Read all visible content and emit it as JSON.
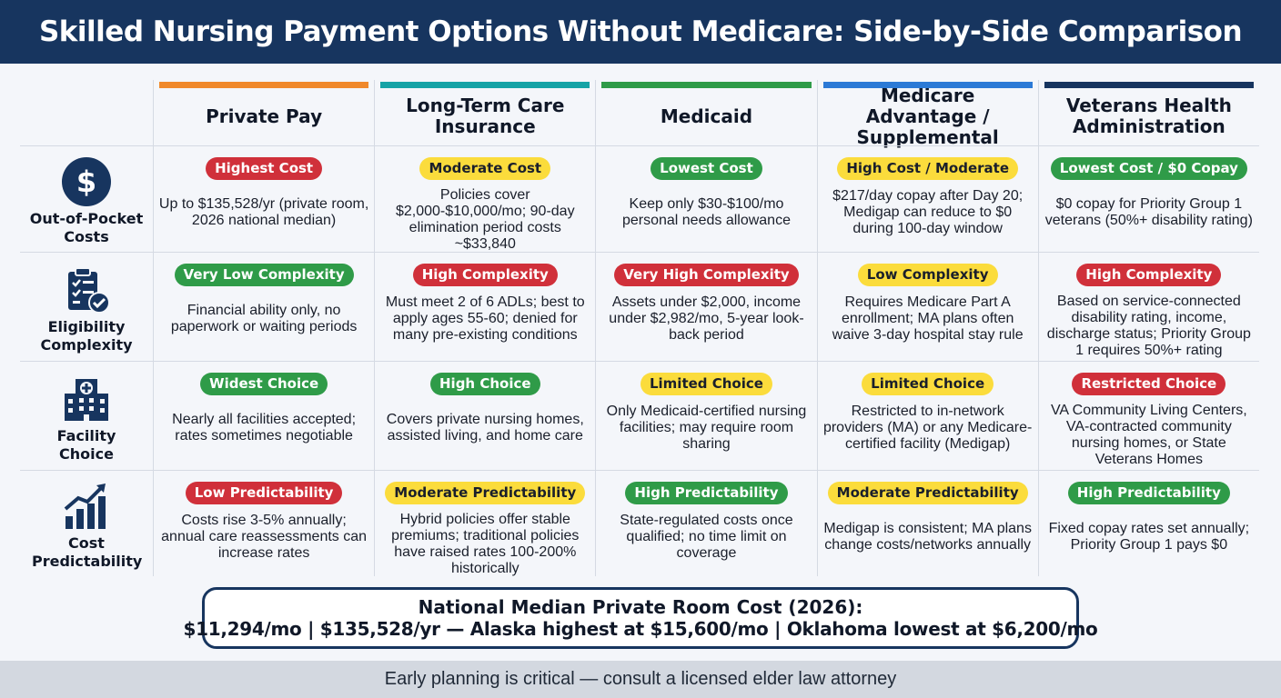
{
  "title": "Skilled Nursing Payment Options Without Medicare: Side-by-Side Comparison",
  "columns": [
    {
      "label": "Private Pay",
      "color": "#f0892b"
    },
    {
      "label": "Long-Term Care Insurance",
      "color": "#16a3a6"
    },
    {
      "label": "Medicaid",
      "color": "#2f9b48"
    },
    {
      "label": "Medicare Advantage / Supplemental",
      "color": "#2c7ad6"
    },
    {
      "label": "Veterans Health Administration",
      "color": "#17355f"
    }
  ],
  "rows": [
    {
      "label": "Out-of-Pocket Costs",
      "icon": "dollar-icon",
      "cells": [
        {
          "badge": "Highest Cost",
          "tone": "red",
          "text": "Up to $135,528/yr (private room, 2026 national median)"
        },
        {
          "badge": "Moderate Cost",
          "tone": "yellow",
          "text": "Policies cover $2,000-$10,000/mo; 90-day elimination period costs ~$33,840"
        },
        {
          "badge": "Lowest Cost",
          "tone": "green",
          "text": "Keep only $30-$100/mo personal needs allowance"
        },
        {
          "badge": "High Cost / Moderate",
          "tone": "yellow",
          "text": "$217/day copay after Day 20; Medigap can reduce to $0 during 100-day window"
        },
        {
          "badge": "Lowest Cost / $0 Copay",
          "tone": "green",
          "text": "$0 copay for Priority Group 1 veterans (50%+ disability rating)"
        }
      ]
    },
    {
      "label": "Eligibility Complexity",
      "icon": "clipboard-check-icon",
      "cells": [
        {
          "badge": "Very Low Complexity",
          "tone": "green",
          "text": "Financial ability only, no paperwork or waiting periods"
        },
        {
          "badge": "High Complexity",
          "tone": "red",
          "text": "Must meet 2 of 6 ADLs; best to apply ages 55-60; denied for many pre-existing conditions"
        },
        {
          "badge": "Very High Complexity",
          "tone": "red",
          "text": "Assets under $2,000, income under $2,982/mo, 5-year look-back period"
        },
        {
          "badge": "Low Complexity",
          "tone": "yellow",
          "text": "Requires Medicare Part A enrollment; MA plans often waive 3-day hospital stay rule"
        },
        {
          "badge": "High Complexity",
          "tone": "red",
          "text": "Based on service-connected disability rating, income, discharge status; Priority Group 1 requires 50%+ rating"
        }
      ]
    },
    {
      "label": "Facility Choice",
      "icon": "hospital-building-icon",
      "cells": [
        {
          "badge": "Widest Choice",
          "tone": "green",
          "text": "Nearly all facilities accepted; rates sometimes negotiable"
        },
        {
          "badge": "High Choice",
          "tone": "green",
          "text": "Covers private nursing homes, assisted living, and home care"
        },
        {
          "badge": "Limited Choice",
          "tone": "yellow",
          "text": "Only Medicaid-certified nursing facilities; may require room sharing"
        },
        {
          "badge": "Limited Choice",
          "tone": "yellow",
          "text": "Restricted to in-network providers (MA) or any Medicare-certified facility (Medigap)"
        },
        {
          "badge": "Restricted Choice",
          "tone": "red",
          "text": "VA Community Living Centers, VA-contracted community nursing homes, or State Veterans Homes"
        }
      ]
    },
    {
      "label": "Cost Predictability",
      "icon": "rising-chart-icon",
      "cells": [
        {
          "badge": "Low Predictability",
          "tone": "red",
          "text": "Costs rise 3-5% annually; annual care reassessments can increase rates"
        },
        {
          "badge": "Moderate Predictability",
          "tone": "yellow",
          "text": "Hybrid policies offer stable premiums; traditional policies have raised rates 100-200% historically"
        },
        {
          "badge": "High Predictability",
          "tone": "green",
          "text": "State-regulated costs once qualified; no time limit on coverage"
        },
        {
          "badge": "Moderate Predictability",
          "tone": "yellow",
          "text": "Medigap is consistent; MA plans change costs/networks annually"
        },
        {
          "badge": "High Predictability",
          "tone": "green",
          "text": "Fixed copay rates set annually; Priority Group 1 pays $0"
        }
      ]
    }
  ],
  "summary": {
    "line1": "National Median Private Room Cost (2026):",
    "line2": "$11,294/mo | $135,528/yr — Alaska highest at $15,600/mo | Oklahoma lowest at $6,200/mo"
  },
  "footer": "Early planning is critical — consult a licensed elder law attorney"
}
